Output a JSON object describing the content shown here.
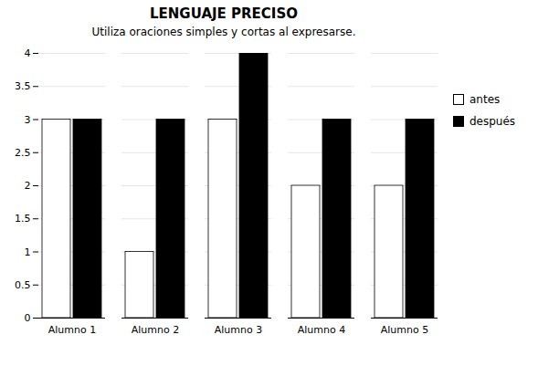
{
  "chart_data": {
    "type": "bar",
    "title": "LENGUAJE PRECISO",
    "subtitle": "Utiliza oraciones simples y cortas al expresarse.",
    "categories": [
      "Alumno 1",
      "Alumno 2",
      "Alumno 3",
      "Alumno 4",
      "Alumno 5"
    ],
    "series": [
      {
        "name": "antes",
        "color": "#ffffff",
        "values": [
          3,
          1,
          3,
          2,
          2
        ]
      },
      {
        "name": "después",
        "color": "#000000",
        "values": [
          3,
          3,
          4,
          3,
          3
        ]
      }
    ],
    "ylim": [
      0,
      4
    ],
    "yticks": [
      0,
      0.5,
      1,
      1.5,
      2,
      2.5,
      3,
      3.5,
      4
    ],
    "grid": true,
    "legend": "right"
  }
}
